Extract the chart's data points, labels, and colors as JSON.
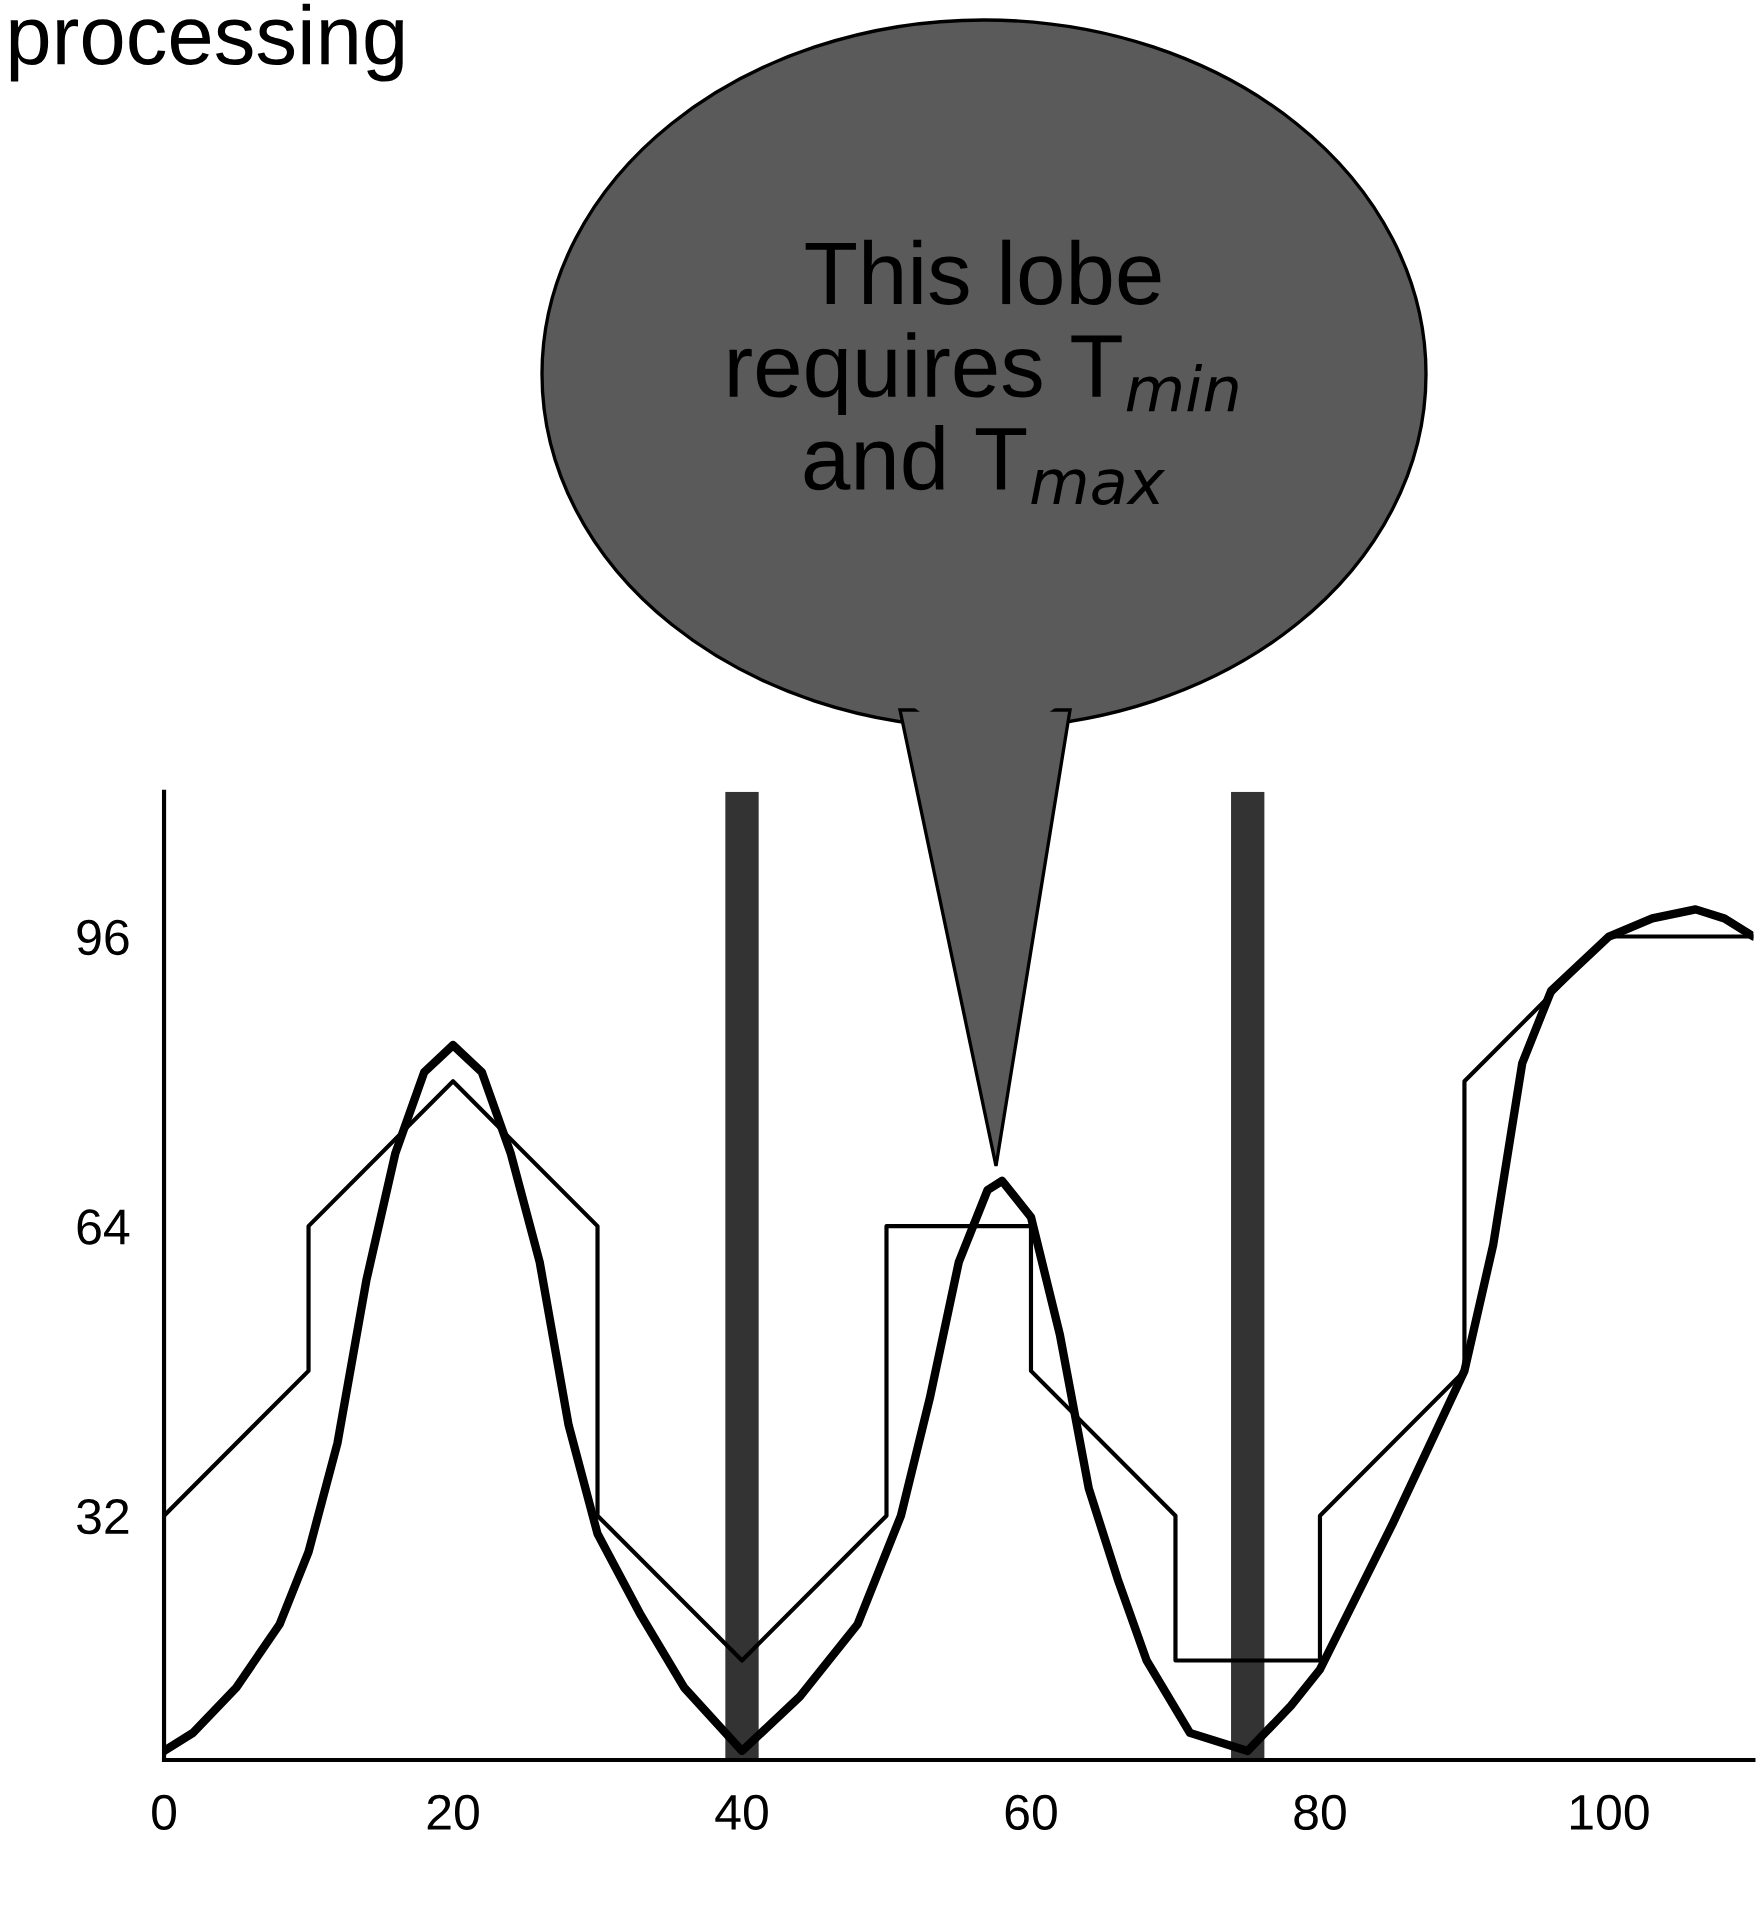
{
  "chart_data": {
    "type": "line",
    "title": "processing",
    "annotations": [
      "This lobe requires T$_{min}$ and T$_{max}$"
    ],
    "xlim": [
      0,
      110
    ],
    "ylim": [
      5,
      112
    ],
    "xticks": [
      0,
      20,
      40,
      60,
      80,
      100
    ],
    "yticks": [
      32,
      64,
      96
    ],
    "grid": false,
    "legend": false,
    "marker": "none",
    "line_style": "solid",
    "ref_lines": [
      {
        "axis": "x",
        "value": 40,
        "color": "#333333"
      },
      {
        "axis": "x",
        "value": 75,
        "color": "#333333"
      }
    ],
    "series": [
      {
        "color": "#000000",
        "x": [
          0,
          10,
          10,
          20,
          30,
          30,
          40,
          50,
          50,
          60,
          60,
          70,
          70,
          80,
          80,
          90,
          90,
          100,
          110
        ],
        "values": [
          32,
          48,
          64,
          80,
          64,
          32,
          16,
          32,
          64,
          64,
          48,
          32,
          16,
          16,
          32,
          48,
          80,
          96,
          96
        ]
      },
      {
        "color": "#000000",
        "x": [
          0,
          2,
          5,
          8,
          10,
          12,
          14,
          16,
          18,
          20,
          22,
          24,
          26,
          28,
          30,
          33,
          36,
          40,
          44,
          48,
          51,
          53,
          55,
          57,
          58,
          60,
          62,
          64,
          66,
          68,
          71,
          75,
          78,
          80,
          85,
          90,
          92,
          94,
          96,
          100,
          103,
          106,
          108,
          110
        ],
        "values": [
          6,
          8,
          13,
          20,
          28,
          40,
          58,
          72,
          81,
          84,
          81,
          72,
          60,
          42,
          30,
          21,
          13,
          6,
          12,
          20,
          32,
          45,
          60,
          68,
          69,
          65,
          52,
          35,
          25,
          16,
          8,
          6,
          11,
          15,
          31,
          48,
          62,
          82,
          90,
          96,
          98,
          99,
          98,
          96
        ]
      }
    ]
  }
}
